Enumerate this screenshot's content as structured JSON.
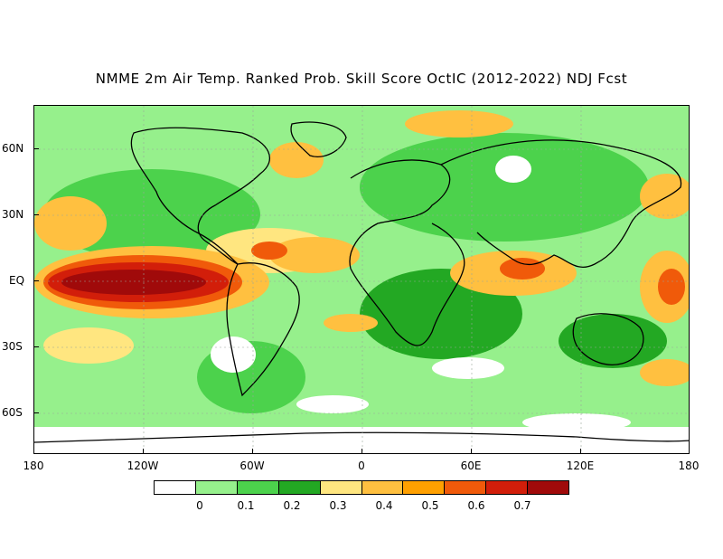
{
  "title": "NMME 2m Air Temp. Ranked Prob. Skill Score OctIC (2012-2022) NDJ Fcst",
  "x_ticks": [
    "180",
    "120W",
    "60W",
    "0",
    "60E",
    "120E",
    "180"
  ],
  "y_ticks": [
    "60N",
    "30N",
    "EQ",
    "30S",
    "60S"
  ],
  "colorbar": {
    "colors": [
      "#ffffff",
      "#96f08c",
      "#4cd24c",
      "#23a823",
      "#ffe680",
      "#ffc040",
      "#ffa000",
      "#f05a0a",
      "#d21e0a",
      "#a00a0a"
    ],
    "labels": [
      "0",
      "0.1",
      "0.2",
      "0.3",
      "0.4",
      "0.5",
      "0.6",
      "0.7"
    ]
  },
  "map": {
    "background_color": "#7fdc7f",
    "coastline_color": "#000000"
  }
}
